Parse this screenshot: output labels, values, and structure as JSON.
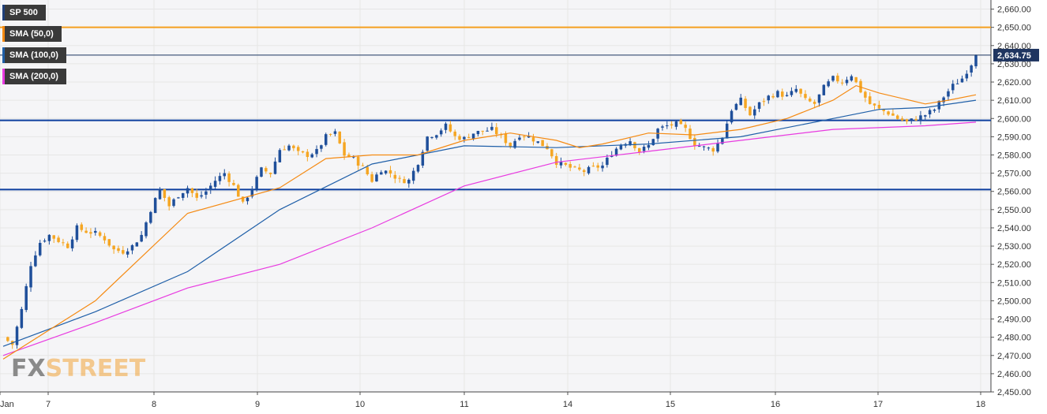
{
  "legend": [
    {
      "label": "SP 500",
      "color": "#1f3f7a"
    },
    {
      "label": "SMA (50,0)",
      "color": "#f58a12"
    },
    {
      "label": "SMA (100,0)",
      "color": "#1f5fa8"
    },
    {
      "label": "SMA (200,0)",
      "color": "#e83ae0"
    }
  ],
  "watermark": {
    "part1": "FX",
    "part2": "STREET"
  },
  "chart_data": {
    "type": "candlestick",
    "symbol": "SP 500",
    "ylim": [
      2450,
      2665
    ],
    "y_ticks": [
      "2,450.00",
      "2,460.00",
      "2,470.00",
      "2,480.00",
      "2,490.00",
      "2,500.00",
      "2,510.00",
      "2,520.00",
      "2,530.00",
      "2,540.00",
      "2,550.00",
      "2,560.00",
      "2,570.00",
      "2,580.00",
      "2,590.00",
      "2,600.00",
      "2,610.00",
      "2,620.00",
      "2,630.00",
      "2,640.00",
      "2,650.00",
      "2,660.00"
    ],
    "x_ticks": [
      "Jan",
      "7",
      "8",
      "9",
      "10",
      "11",
      "14",
      "15",
      "16",
      "17",
      "18"
    ],
    "last_price": 2634.75,
    "last_price_label": "2,634.75",
    "horizontal_lines": [
      {
        "value": 2650,
        "color": "#f5a020"
      },
      {
        "value": 2599,
        "color": "#0d3f9e"
      },
      {
        "value": 2561,
        "color": "#0d3f9e"
      }
    ],
    "colors": {
      "up": "#1f4f9a",
      "down": "#f5a623",
      "grid": "#e6e6e6",
      "plot_bg": "#f5f5f7"
    },
    "price_path": [
      [
        0,
        2480
      ],
      [
        2,
        2476
      ],
      [
        4,
        2495
      ],
      [
        6,
        2520
      ],
      [
        8,
        2532
      ],
      [
        10,
        2536
      ],
      [
        12,
        2533
      ],
      [
        14,
        2530
      ],
      [
        16,
        2540
      ],
      [
        18,
        2538
      ],
      [
        20,
        2537
      ],
      [
        22,
        2534
      ],
      [
        24,
        2528
      ],
      [
        26,
        2527
      ],
      [
        28,
        2530
      ],
      [
        30,
        2536
      ],
      [
        32,
        2550
      ],
      [
        34,
        2561
      ],
      [
        36,
        2552
      ],
      [
        38,
        2558
      ],
      [
        40,
        2562
      ],
      [
        42,
        2556
      ],
      [
        44,
        2560
      ],
      [
        46,
        2566
      ],
      [
        48,
        2570
      ],
      [
        50,
        2563
      ],
      [
        52,
        2553
      ],
      [
        54,
        2562
      ],
      [
        56,
        2572
      ],
      [
        58,
        2570
      ],
      [
        60,
        2583
      ],
      [
        62,
        2585
      ],
      [
        64,
        2581
      ],
      [
        66,
        2580
      ],
      [
        68,
        2582
      ],
      [
        70,
        2590
      ],
      [
        72,
        2592
      ],
      [
        74,
        2580
      ],
      [
        76,
        2578
      ],
      [
        78,
        2573
      ],
      [
        80,
        2566
      ],
      [
        82,
        2572
      ],
      [
        84,
        2570
      ],
      [
        86,
        2566
      ],
      [
        88,
        2566
      ],
      [
        90,
        2576
      ],
      [
        92,
        2590
      ],
      [
        94,
        2592
      ],
      [
        96,
        2596
      ],
      [
        98,
        2590
      ],
      [
        100,
        2589
      ],
      [
        102,
        2592
      ],
      [
        104,
        2593
      ],
      [
        106,
        2594
      ],
      [
        108,
        2590
      ],
      [
        110,
        2585
      ],
      [
        112,
        2591
      ],
      [
        114,
        2590
      ],
      [
        116,
        2587
      ],
      [
        118,
        2584
      ],
      [
        120,
        2576
      ],
      [
        122,
        2574
      ],
      [
        124,
        2572
      ],
      [
        126,
        2571
      ],
      [
        128,
        2573
      ],
      [
        130,
        2574
      ],
      [
        132,
        2581
      ],
      [
        134,
        2586
      ],
      [
        136,
        2588
      ],
      [
        138,
        2582
      ],
      [
        140,
        2585
      ],
      [
        142,
        2594
      ],
      [
        144,
        2596
      ],
      [
        146,
        2597
      ],
      [
        148,
        2594
      ],
      [
        150,
        2586
      ],
      [
        152,
        2584
      ],
      [
        154,
        2583
      ],
      [
        156,
        2590
      ],
      [
        158,
        2605
      ],
      [
        160,
        2610
      ],
      [
        162,
        2602
      ],
      [
        164,
        2608
      ],
      [
        166,
        2612
      ],
      [
        168,
        2614
      ],
      [
        170,
        2612
      ],
      [
        172,
        2616
      ],
      [
        174,
        2610
      ],
      [
        176,
        2608
      ],
      [
        178,
        2617
      ],
      [
        180,
        2622
      ],
      [
        182,
        2620
      ],
      [
        184,
        2624
      ],
      [
        186,
        2615
      ],
      [
        188,
        2608
      ],
      [
        190,
        2605
      ],
      [
        192,
        2603
      ],
      [
        194,
        2600
      ],
      [
        196,
        2598
      ],
      [
        198,
        2600
      ],
      [
        200,
        2602
      ],
      [
        202,
        2605
      ],
      [
        204,
        2612
      ],
      [
        206,
        2618
      ],
      [
        208,
        2622
      ],
      [
        210,
        2630
      ],
      [
        211,
        2636
      ]
    ],
    "sma50": [
      [
        0,
        2468
      ],
      [
        20,
        2500
      ],
      [
        40,
        2548
      ],
      [
        60,
        2562
      ],
      [
        70,
        2578
      ],
      [
        80,
        2580
      ],
      [
        90,
        2580
      ],
      [
        100,
        2588
      ],
      [
        110,
        2592
      ],
      [
        120,
        2588
      ],
      [
        125,
        2584
      ],
      [
        130,
        2586
      ],
      [
        140,
        2592
      ],
      [
        150,
        2591
      ],
      [
        160,
        2594
      ],
      [
        170,
        2600
      ],
      [
        180,
        2610
      ],
      [
        185,
        2618
      ],
      [
        190,
        2614
      ],
      [
        200,
        2608
      ],
      [
        205,
        2610
      ],
      [
        211,
        2613
      ]
    ],
    "sma100": [
      [
        0,
        2475
      ],
      [
        20,
        2494
      ],
      [
        40,
        2516
      ],
      [
        60,
        2550
      ],
      [
        80,
        2575
      ],
      [
        100,
        2585
      ],
      [
        120,
        2584
      ],
      [
        140,
        2586
      ],
      [
        160,
        2590
      ],
      [
        180,
        2600
      ],
      [
        190,
        2605
      ],
      [
        200,
        2606
      ],
      [
        211,
        2610
      ]
    ],
    "sma200": [
      [
        0,
        2470
      ],
      [
        20,
        2488
      ],
      [
        40,
        2507
      ],
      [
        60,
        2520
      ],
      [
        80,
        2540
      ],
      [
        100,
        2563
      ],
      [
        120,
        2576
      ],
      [
        140,
        2582
      ],
      [
        160,
        2588
      ],
      [
        180,
        2594
      ],
      [
        200,
        2596
      ],
      [
        211,
        2598
      ]
    ]
  }
}
